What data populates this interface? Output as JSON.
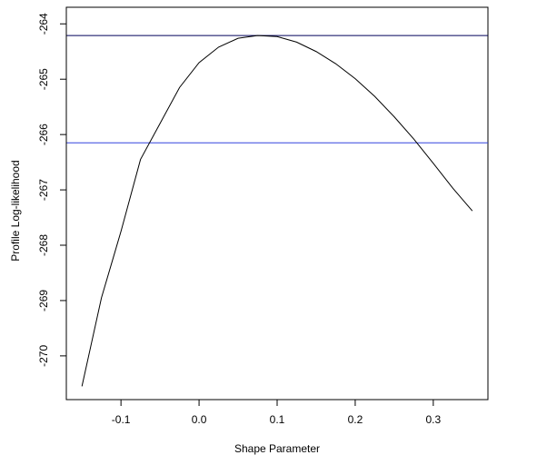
{
  "chart_data": {
    "type": "line",
    "xlabel": "Shape Parameter",
    "ylabel": "Profile Log-likelihood",
    "x": [
      -0.15,
      -0.125,
      -0.1,
      -0.075,
      -0.05,
      -0.025,
      0,
      0.025,
      0.05,
      0.075,
      0.1,
      0.125,
      0.15,
      0.175,
      0.2,
      0.225,
      0.25,
      0.275,
      0.3,
      0.325,
      0.35
    ],
    "series": [
      {
        "color": "#000000",
        "values": [
          -270.55,
          -268.95,
          -267.75,
          -266.45,
          -265.8,
          -265.15,
          -264.7,
          -264.42,
          -264.26,
          -264.21,
          -264.23,
          -264.33,
          -264.5,
          -264.72,
          -264.99,
          -265.31,
          -265.68,
          -266.08,
          -266.52,
          -266.97,
          -267.38
        ]
      }
    ],
    "hlines": [
      {
        "value": -264.21,
        "color": "#00005a"
      },
      {
        "value": -266.15,
        "color": "#3344dd"
      }
    ],
    "xlim": [
      -0.17,
      0.37
    ],
    "xticks": [
      -0.1,
      {
        "value": 0,
        "label": "0.0"
      },
      0.1,
      0.2,
      0.3
    ],
    "ylim": [
      -270.79,
      -263.7
    ],
    "yticks": [
      -270,
      -269,
      -268,
      -267,
      -266,
      -265,
      -264
    ],
    "grid": false
  }
}
